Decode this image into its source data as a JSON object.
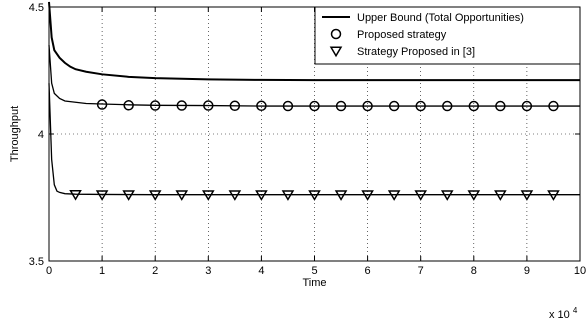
{
  "chart_data": {
    "type": "line",
    "title": "",
    "xlabel": "Time",
    "ylabel": "Throughput",
    "xlim": [
      0,
      10
    ],
    "ylim": [
      3.5,
      4.5
    ],
    "x_multiplier": "x 10",
    "x_multiplier_exp": "4",
    "x_ticks": [
      0,
      1,
      2,
      3,
      4,
      5,
      6,
      7,
      8,
      9,
      10
    ],
    "y_ticks": [
      3.5,
      4,
      4.5
    ],
    "grid": true,
    "legend_position": "top-right",
    "series": [
      {
        "name": "Upper Bound (Total Opportunities)",
        "style": "line",
        "color": "#000000",
        "x": [
          0.0,
          0.05,
          0.1,
          0.2,
          0.3,
          0.4,
          0.5,
          0.7,
          1.0,
          1.5,
          2.0,
          3.0,
          4.0,
          5.0,
          6.0,
          7.0,
          8.0,
          9.0,
          10.0
        ],
        "y": [
          4.52,
          4.38,
          4.33,
          4.3,
          4.28,
          4.265,
          4.255,
          4.245,
          4.235,
          4.225,
          4.22,
          4.215,
          4.213,
          4.212,
          4.212,
          4.212,
          4.212,
          4.212,
          4.212
        ]
      },
      {
        "name": "Proposed strategy",
        "style": "line-with-markers",
        "marker": "circle",
        "color": "#000000",
        "x": [
          0.0,
          0.05,
          0.1,
          0.2,
          0.3,
          0.5,
          0.7,
          1.0,
          1.5,
          2.0,
          3.0,
          4.0,
          5.0,
          6.0,
          7.0,
          8.0,
          9.0,
          10.0
        ],
        "y": [
          4.35,
          4.2,
          4.16,
          4.14,
          4.13,
          4.125,
          4.12,
          4.118,
          4.115,
          4.113,
          4.112,
          4.11,
          4.11,
          4.11,
          4.11,
          4.11,
          4.11,
          4.11
        ],
        "marker_x": [
          1.0,
          1.5,
          2.0,
          2.5,
          3.0,
          3.5,
          4.0,
          4.5,
          5.0,
          5.5,
          6.0,
          6.5,
          7.0,
          7.5,
          8.0,
          8.5,
          9.0,
          9.5
        ],
        "marker_y": [
          4.116,
          4.113,
          4.112,
          4.112,
          4.112,
          4.111,
          4.111,
          4.11,
          4.11,
          4.11,
          4.11,
          4.11,
          4.11,
          4.11,
          4.11,
          4.11,
          4.11,
          4.11
        ]
      },
      {
        "name": "Strategy Proposed in [3]",
        "style": "line-with-markers",
        "marker": "triangle-down",
        "color": "#000000",
        "x": [
          0.0,
          0.05,
          0.1,
          0.15,
          0.2,
          0.3,
          0.5,
          1.0,
          2.0,
          3.0,
          4.0,
          5.0,
          6.0,
          7.0,
          8.0,
          9.0,
          10.0
        ],
        "y": [
          4.2,
          3.9,
          3.8,
          3.775,
          3.77,
          3.765,
          3.763,
          3.762,
          3.761,
          3.761,
          3.761,
          3.761,
          3.761,
          3.761,
          3.761,
          3.761,
          3.761
        ],
        "marker_x": [
          0.5,
          1.0,
          1.5,
          2.0,
          2.5,
          3.0,
          3.5,
          4.0,
          4.5,
          5.0,
          5.5,
          6.0,
          6.5,
          7.0,
          7.5,
          8.0,
          8.5,
          9.0,
          9.5
        ],
        "marker_y": [
          3.762,
          3.761,
          3.761,
          3.761,
          3.761,
          3.761,
          3.761,
          3.761,
          3.761,
          3.761,
          3.761,
          3.761,
          3.761,
          3.761,
          3.761,
          3.761,
          3.761,
          3.761,
          3.761
        ]
      }
    ]
  }
}
